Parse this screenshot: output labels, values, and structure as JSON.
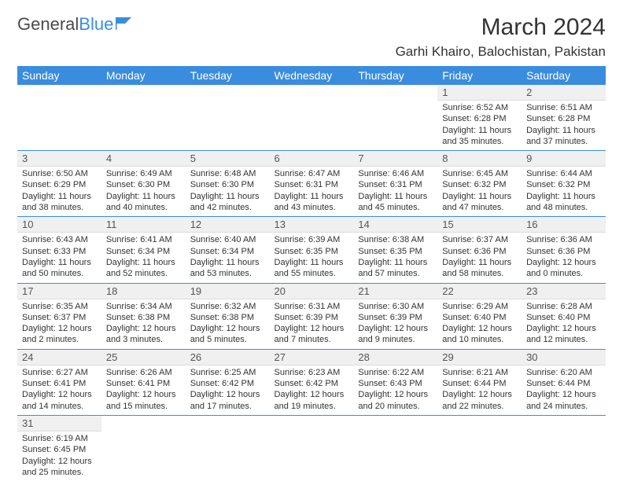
{
  "brand": {
    "part1": "General",
    "part2": "Blue"
  },
  "title": "March 2024",
  "location": "Garhi Khairo, Balochistan, Pakistan",
  "colors": {
    "header_bg": "#3a8dde",
    "daynum_bg": "#f0f0f0"
  },
  "weekdays": [
    "Sunday",
    "Monday",
    "Tuesday",
    "Wednesday",
    "Thursday",
    "Friday",
    "Saturday"
  ],
  "days": {
    "1": {
      "sunrise": "6:52 AM",
      "sunset": "6:28 PM",
      "daylight": "11 hours and 35 minutes."
    },
    "2": {
      "sunrise": "6:51 AM",
      "sunset": "6:28 PM",
      "daylight": "11 hours and 37 minutes."
    },
    "3": {
      "sunrise": "6:50 AM",
      "sunset": "6:29 PM",
      "daylight": "11 hours and 38 minutes."
    },
    "4": {
      "sunrise": "6:49 AM",
      "sunset": "6:30 PM",
      "daylight": "11 hours and 40 minutes."
    },
    "5": {
      "sunrise": "6:48 AM",
      "sunset": "6:30 PM",
      "daylight": "11 hours and 42 minutes."
    },
    "6": {
      "sunrise": "6:47 AM",
      "sunset": "6:31 PM",
      "daylight": "11 hours and 43 minutes."
    },
    "7": {
      "sunrise": "6:46 AM",
      "sunset": "6:31 PM",
      "daylight": "11 hours and 45 minutes."
    },
    "8": {
      "sunrise": "6:45 AM",
      "sunset": "6:32 PM",
      "daylight": "11 hours and 47 minutes."
    },
    "9": {
      "sunrise": "6:44 AM",
      "sunset": "6:32 PM",
      "daylight": "11 hours and 48 minutes."
    },
    "10": {
      "sunrise": "6:43 AM",
      "sunset": "6:33 PM",
      "daylight": "11 hours and 50 minutes."
    },
    "11": {
      "sunrise": "6:41 AM",
      "sunset": "6:34 PM",
      "daylight": "11 hours and 52 minutes."
    },
    "12": {
      "sunrise": "6:40 AM",
      "sunset": "6:34 PM",
      "daylight": "11 hours and 53 minutes."
    },
    "13": {
      "sunrise": "6:39 AM",
      "sunset": "6:35 PM",
      "daylight": "11 hours and 55 minutes."
    },
    "14": {
      "sunrise": "6:38 AM",
      "sunset": "6:35 PM",
      "daylight": "11 hours and 57 minutes."
    },
    "15": {
      "sunrise": "6:37 AM",
      "sunset": "6:36 PM",
      "daylight": "11 hours and 58 minutes."
    },
    "16": {
      "sunrise": "6:36 AM",
      "sunset": "6:36 PM",
      "daylight": "12 hours and 0 minutes."
    },
    "17": {
      "sunrise": "6:35 AM",
      "sunset": "6:37 PM",
      "daylight": "12 hours and 2 minutes."
    },
    "18": {
      "sunrise": "6:34 AM",
      "sunset": "6:38 PM",
      "daylight": "12 hours and 3 minutes."
    },
    "19": {
      "sunrise": "6:32 AM",
      "sunset": "6:38 PM",
      "daylight": "12 hours and 5 minutes."
    },
    "20": {
      "sunrise": "6:31 AM",
      "sunset": "6:39 PM",
      "daylight": "12 hours and 7 minutes."
    },
    "21": {
      "sunrise": "6:30 AM",
      "sunset": "6:39 PM",
      "daylight": "12 hours and 9 minutes."
    },
    "22": {
      "sunrise": "6:29 AM",
      "sunset": "6:40 PM",
      "daylight": "12 hours and 10 minutes."
    },
    "23": {
      "sunrise": "6:28 AM",
      "sunset": "6:40 PM",
      "daylight": "12 hours and 12 minutes."
    },
    "24": {
      "sunrise": "6:27 AM",
      "sunset": "6:41 PM",
      "daylight": "12 hours and 14 minutes."
    },
    "25": {
      "sunrise": "6:26 AM",
      "sunset": "6:41 PM",
      "daylight": "12 hours and 15 minutes."
    },
    "26": {
      "sunrise": "6:25 AM",
      "sunset": "6:42 PM",
      "daylight": "12 hours and 17 minutes."
    },
    "27": {
      "sunrise": "6:23 AM",
      "sunset": "6:42 PM",
      "daylight": "12 hours and 19 minutes."
    },
    "28": {
      "sunrise": "6:22 AM",
      "sunset": "6:43 PM",
      "daylight": "12 hours and 20 minutes."
    },
    "29": {
      "sunrise": "6:21 AM",
      "sunset": "6:44 PM",
      "daylight": "12 hours and 22 minutes."
    },
    "30": {
      "sunrise": "6:20 AM",
      "sunset": "6:44 PM",
      "daylight": "12 hours and 24 minutes."
    },
    "31": {
      "sunrise": "6:19 AM",
      "sunset": "6:45 PM",
      "daylight": "12 hours and 25 minutes."
    }
  },
  "grid": [
    [
      null,
      null,
      null,
      null,
      null,
      "1",
      "2"
    ],
    [
      "3",
      "4",
      "5",
      "6",
      "7",
      "8",
      "9"
    ],
    [
      "10",
      "11",
      "12",
      "13",
      "14",
      "15",
      "16"
    ],
    [
      "17",
      "18",
      "19",
      "20",
      "21",
      "22",
      "23"
    ],
    [
      "24",
      "25",
      "26",
      "27",
      "28",
      "29",
      "30"
    ],
    [
      "31",
      null,
      null,
      null,
      null,
      null,
      null
    ]
  ]
}
